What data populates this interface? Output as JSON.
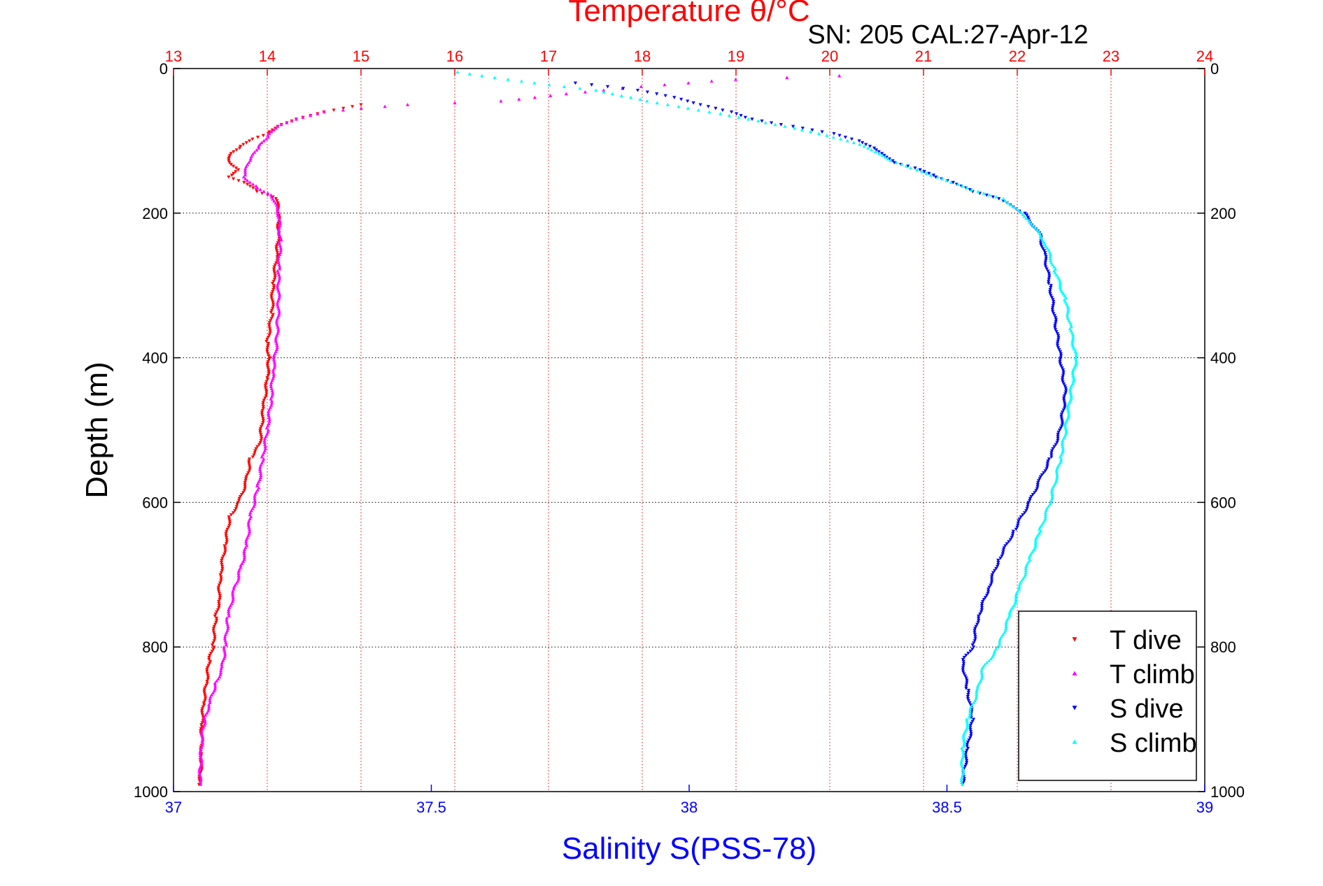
{
  "chart_data": {
    "type": "scatter",
    "title": "Temperature θ/°C",
    "subtitle": "SN: 205  CAL:27-Apr-12",
    "xlabel": "Salinity S(PSS-78)",
    "ylabel": "Depth (m)",
    "top_axis": {
      "label": "Temperature θ/°C",
      "range": [
        13,
        24
      ],
      "ticks": [
        "13",
        "14",
        "15",
        "16",
        "17",
        "18",
        "19",
        "20",
        "21",
        "22",
        "23",
        "24"
      ],
      "color": "#ff0000"
    },
    "bottom_axis": {
      "label": "Salinity S(PSS-78)",
      "range": [
        37,
        39
      ],
      "ticks": [
        "37",
        "37.5",
        "38",
        "38.5",
        "39"
      ],
      "color": "#0000ff"
    },
    "y_axis": {
      "range": [
        0,
        1000
      ],
      "reversed": true,
      "ticks": [
        "0",
        "200",
        "400",
        "600",
        "800",
        "1000"
      ]
    },
    "grid": true,
    "legend_position": "bottom-right",
    "series": [
      {
        "name": "T dive",
        "axis": "temperature",
        "color": "#ff0000",
        "marker": "triangle-down",
        "points": [
          [
            15.0,
            50
          ],
          [
            14.6,
            60
          ],
          [
            14.3,
            70
          ],
          [
            14.1,
            80
          ],
          [
            14.0,
            90
          ],
          [
            13.8,
            100
          ],
          [
            13.7,
            110
          ],
          [
            13.6,
            120
          ],
          [
            13.6,
            130
          ],
          [
            13.7,
            140
          ],
          [
            13.6,
            150
          ],
          [
            13.8,
            160
          ],
          [
            13.9,
            170
          ],
          [
            14.1,
            180
          ],
          [
            14.12,
            200
          ],
          [
            14.12,
            230
          ],
          [
            14.1,
            260
          ],
          [
            14.06,
            300
          ],
          [
            14.05,
            340
          ],
          [
            14.0,
            380
          ],
          [
            14.02,
            400
          ],
          [
            14.0,
            430
          ],
          [
            13.96,
            470
          ],
          [
            13.92,
            520
          ],
          [
            13.82,
            540
          ],
          [
            13.78,
            570
          ],
          [
            13.7,
            600
          ],
          [
            13.6,
            620
          ],
          [
            13.55,
            660
          ],
          [
            13.5,
            700
          ],
          [
            13.48,
            740
          ],
          [
            13.45,
            760
          ],
          [
            13.42,
            800
          ],
          [
            13.38,
            820
          ],
          [
            13.35,
            850
          ],
          [
            13.32,
            880
          ],
          [
            13.3,
            910
          ],
          [
            13.3,
            950
          ],
          [
            13.28,
            990
          ]
        ]
      },
      {
        "name": "T climb",
        "axis": "temperature",
        "color": "#ff00ff",
        "marker": "triangle-up",
        "points": [
          [
            20.1,
            10
          ],
          [
            19.0,
            15
          ],
          [
            18.5,
            20
          ],
          [
            18.0,
            25
          ],
          [
            17.6,
            30
          ],
          [
            17.2,
            35
          ],
          [
            16.5,
            45
          ],
          [
            15.5,
            50
          ],
          [
            15.0,
            55
          ],
          [
            14.6,
            60
          ],
          [
            14.3,
            70
          ],
          [
            14.1,
            80
          ],
          [
            14.0,
            95
          ],
          [
            13.9,
            110
          ],
          [
            13.8,
            130
          ],
          [
            13.75,
            150
          ],
          [
            13.9,
            165
          ],
          [
            14.05,
            175
          ],
          [
            14.12,
            200
          ],
          [
            14.14,
            240
          ],
          [
            14.12,
            280
          ],
          [
            14.12,
            330
          ],
          [
            14.1,
            380
          ],
          [
            14.06,
            420
          ],
          [
            14.04,
            460
          ],
          [
            14.0,
            500
          ],
          [
            13.95,
            540
          ],
          [
            13.9,
            580
          ],
          [
            13.82,
            620
          ],
          [
            13.78,
            660
          ],
          [
            13.72,
            690
          ],
          [
            13.65,
            720
          ],
          [
            13.58,
            760
          ],
          [
            13.55,
            800
          ],
          [
            13.52,
            830
          ],
          [
            13.45,
            850
          ],
          [
            13.38,
            880
          ],
          [
            13.33,
            900
          ],
          [
            13.3,
            930
          ],
          [
            13.28,
            990
          ]
        ]
      },
      {
        "name": "S dive",
        "axis": "salinity",
        "color": "#0000ff",
        "marker": "triangle-down",
        "points": [
          [
            37.78,
            20
          ],
          [
            37.9,
            30
          ],
          [
            37.97,
            40
          ],
          [
            38.02,
            50
          ],
          [
            38.08,
            60
          ],
          [
            38.12,
            70
          ],
          [
            38.2,
            80
          ],
          [
            38.28,
            90
          ],
          [
            38.33,
            100
          ],
          [
            38.36,
            110
          ],
          [
            38.38,
            120
          ],
          [
            38.4,
            130
          ],
          [
            38.45,
            140
          ],
          [
            38.48,
            150
          ],
          [
            38.52,
            160
          ],
          [
            38.55,
            170
          ],
          [
            38.6,
            180
          ],
          [
            38.65,
            200
          ],
          [
            38.68,
            230
          ],
          [
            38.69,
            260
          ],
          [
            38.7,
            300
          ],
          [
            38.71,
            350
          ],
          [
            38.72,
            400
          ],
          [
            38.73,
            450
          ],
          [
            38.72,
            500
          ],
          [
            38.7,
            540
          ],
          [
            38.68,
            570
          ],
          [
            38.66,
            600
          ],
          [
            38.63,
            640
          ],
          [
            38.6,
            680
          ],
          [
            38.58,
            720
          ],
          [
            38.56,
            760
          ],
          [
            38.55,
            800
          ],
          [
            38.53,
            820
          ],
          [
            38.54,
            860
          ],
          [
            38.55,
            900
          ],
          [
            38.54,
            940
          ],
          [
            38.53,
            990
          ]
        ]
      },
      {
        "name": "S climb",
        "axis": "salinity",
        "color": "#00ffff",
        "marker": "triangle-up",
        "points": [
          [
            37.55,
            5
          ],
          [
            37.7,
            20
          ],
          [
            37.82,
            30
          ],
          [
            37.92,
            45
          ],
          [
            38.0,
            55
          ],
          [
            38.08,
            65
          ],
          [
            38.15,
            75
          ],
          [
            38.22,
            85
          ],
          [
            38.28,
            95
          ],
          [
            38.33,
            105
          ],
          [
            38.36,
            115
          ],
          [
            38.4,
            130
          ],
          [
            38.44,
            140
          ],
          [
            38.48,
            150
          ],
          [
            38.52,
            160
          ],
          [
            38.56,
            170
          ],
          [
            38.61,
            180
          ],
          [
            38.66,
            210
          ],
          [
            38.69,
            240
          ],
          [
            38.71,
            280
          ],
          [
            38.73,
            320
          ],
          [
            38.74,
            360
          ],
          [
            38.75,
            400
          ],
          [
            38.74,
            450
          ],
          [
            38.73,
            500
          ],
          [
            38.72,
            540
          ],
          [
            38.71,
            570
          ],
          [
            38.7,
            600
          ],
          [
            38.68,
            640
          ],
          [
            38.66,
            680
          ],
          [
            38.64,
            720
          ],
          [
            38.62,
            760
          ],
          [
            38.6,
            800
          ],
          [
            38.57,
            830
          ],
          [
            38.56,
            860
          ],
          [
            38.54,
            900
          ],
          [
            38.53,
            940
          ],
          [
            38.53,
            990
          ]
        ]
      }
    ]
  }
}
